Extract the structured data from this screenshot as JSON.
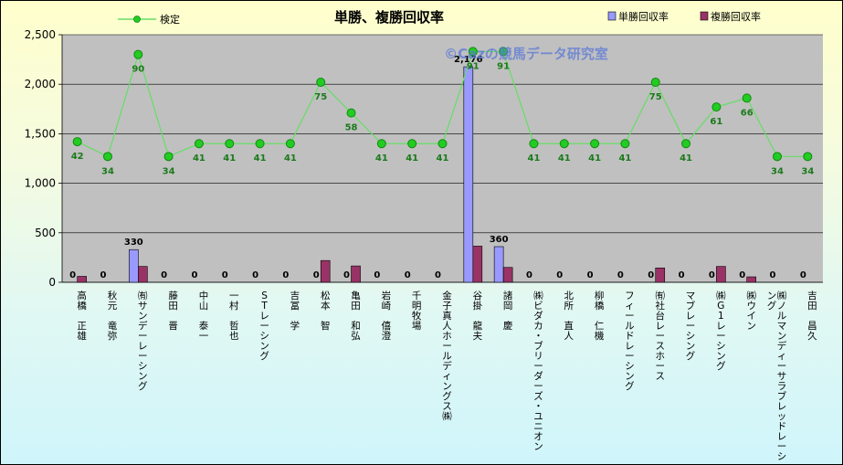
{
  "chart_data": {
    "type": "bar",
    "title": "単勝、複勝回収率",
    "watermark": "©Cazの競馬データ研究室",
    "ylim": [
      0,
      2500
    ],
    "yticks": [
      "0",
      "500",
      "1,000",
      "1,500",
      "2,000",
      "2,500"
    ],
    "ytick_values": [
      0,
      500,
      1000,
      1500,
      2000,
      2500
    ],
    "grid": true,
    "legend_line": "検定",
    "legend_bars": [
      "単勝回収率",
      "複勝回収率"
    ],
    "legend_line_position": "top-left",
    "legend_bars_position": "top-right",
    "colors": {
      "win": "#9999ff",
      "place": "#993366",
      "line": "#66dd66",
      "marker": "#22cc22",
      "plot_bg": "#c0c0c0"
    },
    "categories": [
      "高橋　正雄",
      "秋元　竜弥",
      "㈲サンデーレーシング",
      "藤田　晋",
      "中山　泰一",
      "一村　哲也",
      "STレーシング",
      "吉冨　学",
      "松本　智",
      "亀田　和弘",
      "岩崎　僖澄",
      "千明牧場",
      "金子真人ホールディングス㈱",
      "谷掛　龍夫",
      "諸岡　慶",
      "㈱ビダカ・ブリーダーズ・ユニオン",
      "北所　直人",
      "柳橋　仁機",
      "フィールドレーシング",
      "㈲社台レースホース",
      "マブレーシング",
      "㈱G1レーシング",
      "㈱ウイン",
      "㈱ノルマンディーサラブレッドレーシング",
      "吉田　昌久"
    ],
    "series": [
      {
        "name": "単勝回収率",
        "values": [
          0,
          0,
          330,
          0,
          0,
          0,
          0,
          0,
          0,
          0,
          0,
          0,
          0,
          2176,
          360,
          0,
          0,
          0,
          0,
          0,
          0,
          0,
          0,
          0,
          0
        ],
        "labels": [
          "0",
          "0",
          "330",
          "0",
          "0",
          "0",
          "0",
          "0",
          "0",
          "0",
          "0",
          "0",
          "0",
          "2,176",
          "360",
          "0",
          "0",
          "0",
          "0",
          "0",
          "0",
          "0",
          "0",
          "0",
          "0"
        ]
      },
      {
        "name": "複勝回収率",
        "values": [
          60,
          0,
          160,
          0,
          0,
          0,
          0,
          0,
          220,
          165,
          0,
          0,
          0,
          365,
          150,
          0,
          0,
          0,
          0,
          145,
          0,
          160,
          55,
          0,
          0
        ]
      },
      {
        "name": "検定",
        "values": [
          1420,
          1270,
          2300,
          1270,
          1400,
          1400,
          1400,
          1400,
          2020,
          1710,
          1400,
          1400,
          1400,
          2330,
          2330,
          1400,
          1400,
          1400,
          1400,
          2020,
          1400,
          1770,
          1860,
          1270,
          1270
        ],
        "labels": [
          "42",
          "34",
          "90",
          "34",
          "41",
          "41",
          "41",
          "41",
          "75",
          "58",
          "41",
          "41",
          "41",
          "91",
          "91",
          "41",
          "41",
          "41",
          "41",
          "75",
          "41",
          "61",
          "66",
          "34",
          "34"
        ]
      }
    ]
  }
}
